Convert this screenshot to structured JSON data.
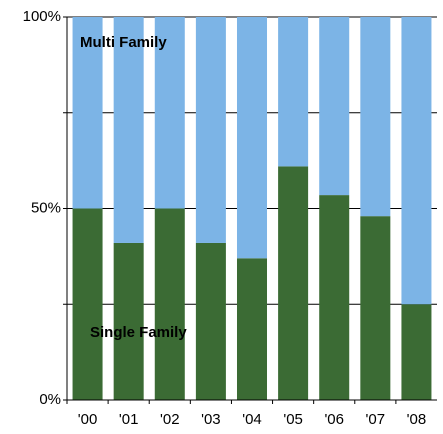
{
  "chart_data": {
    "type": "stacked_bar",
    "categories": [
      "'00",
      "'01",
      "'02",
      "'03",
      "'04",
      "'05",
      "'06",
      "'07",
      "'08"
    ],
    "series": [
      {
        "name": "Single Family",
        "color": "#3b6b34",
        "values": [
          50,
          41,
          50,
          41,
          37,
          61,
          53.5,
          48,
          25
        ]
      },
      {
        "name": "Multi Family",
        "color": "#7cb4e6",
        "values": [
          50,
          59,
          50,
          59,
          63,
          39,
          46.5,
          52,
          75
        ]
      }
    ],
    "ylim": [
      0,
      100
    ],
    "yticks": [
      {
        "value": 0,
        "label": "0%"
      },
      {
        "value": 50,
        "label": "50%"
      },
      {
        "value": 100,
        "label": "100%"
      }
    ],
    "minor_yticks": [
      25,
      75
    ],
    "grid": true
  }
}
